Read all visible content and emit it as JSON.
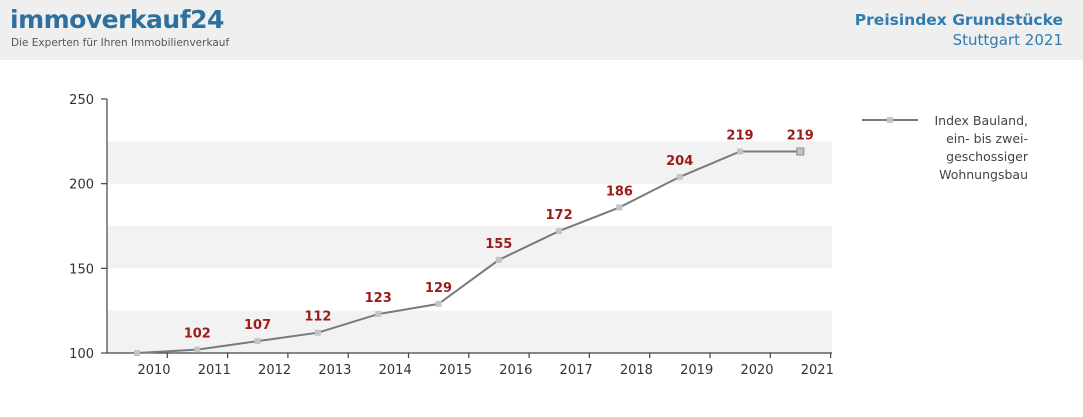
{
  "brand": {
    "name": "immoverkauf24",
    "tagline": "Die Experten für Ihren Immobilienverkauf"
  },
  "title_block": {
    "title": "Preisindex Grundstücke",
    "subtitle": "Stuttgart 2021"
  },
  "colors": {
    "brand": "#2f6f9e",
    "title": "#2f7cb0",
    "line": "#7a7a7a",
    "marker": "#c4c4c4",
    "data_label": "#9c1c1c",
    "band": "#f2f2f2"
  },
  "chart_data": {
    "type": "line",
    "title": "Preisindex Grundstücke",
    "subtitle": "Stuttgart 2021",
    "xlabel": "",
    "ylabel": "",
    "x": [
      "2010",
      "2011",
      "2012",
      "2013",
      "2014",
      "2015",
      "2016",
      "2017",
      "2018",
      "2019",
      "2020",
      "2021"
    ],
    "ylim": [
      100,
      250
    ],
    "yticks": [
      100,
      150,
      200,
      250
    ],
    "grid": "horizontal alternating bands",
    "legend_position": "right",
    "series": [
      {
        "name": "Index Bauland, ein- bis zweigeschossiger Wohnungsbau",
        "legend_lines": [
          "Index Bauland,",
          "ein- bis zwei-",
          "geschossiger",
          "Wohnungsbau"
        ],
        "values": [
          100,
          102,
          107,
          112,
          123,
          129,
          155,
          172,
          186,
          204,
          219,
          219
        ],
        "labels": [
          "",
          "102",
          "107",
          "112",
          "123",
          "129",
          "155",
          "172",
          "186",
          "204",
          "219",
          "219"
        ]
      }
    ]
  }
}
